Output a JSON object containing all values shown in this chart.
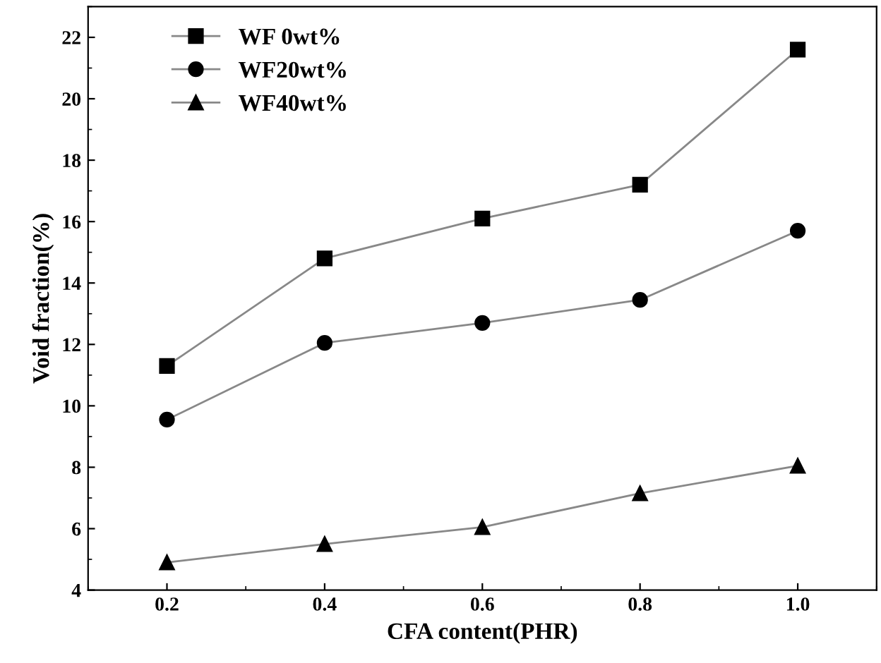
{
  "chart_data": {
    "type": "line",
    "xlabel": "CFA content(PHR)",
    "ylabel": "Void fraction(%)",
    "x": [
      0.2,
      0.4,
      0.6,
      0.8,
      1.0
    ],
    "series": [
      {
        "name": "WF 0wt%",
        "color": "#000000",
        "marker": "square",
        "values": [
          11.3,
          14.8,
          16.1,
          17.2,
          21.6
        ]
      },
      {
        "name": "WF20wt%",
        "color": "#000000",
        "marker": "circle",
        "values": [
          9.55,
          12.05,
          12.7,
          13.45,
          15.7
        ]
      },
      {
        "name": "WF40wt%",
        "color": "#000000",
        "marker": "triangle",
        "values": [
          4.9,
          5.5,
          6.05,
          7.15,
          8.05
        ]
      }
    ],
    "xlim": [
      0.1,
      1.1
    ],
    "xticks": [
      {
        "value": 0.2,
        "label": "0.2"
      },
      {
        "value": 0.4,
        "label": "0.4"
      },
      {
        "value": 0.6,
        "label": "0.6"
      },
      {
        "value": 0.8,
        "label": "0.8"
      },
      {
        "value": 1.0,
        "label": "1.0"
      }
    ],
    "ylim": [
      4,
      23
    ],
    "yticks": [
      4,
      6,
      8,
      10,
      12,
      14,
      16,
      18,
      20,
      22
    ],
    "grid": false,
    "legend": "top left",
    "line_style": "solid"
  }
}
